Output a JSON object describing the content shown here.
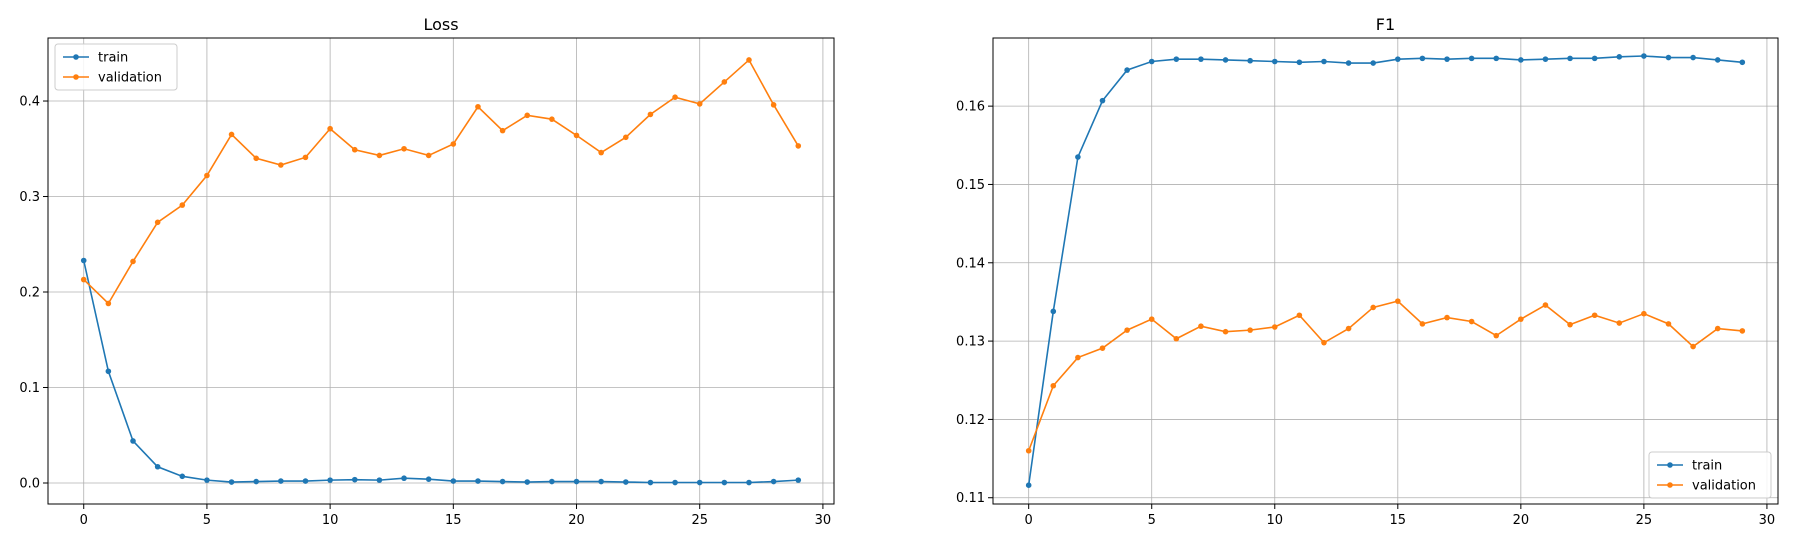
{
  "colors": {
    "train": "#1f77b4",
    "validation": "#ff7f0e",
    "grid": "#b0b0b0",
    "axis": "#000000"
  },
  "chart_data": [
    {
      "type": "line",
      "title": "Loss",
      "xlabel": "",
      "ylabel": "",
      "xlim": [
        -1.45,
        30.45
      ],
      "ylim": [
        -0.022,
        0.466
      ],
      "xticks": [
        0,
        5,
        10,
        15,
        20,
        25,
        30
      ],
      "yticks": [
        0.0,
        0.1,
        0.2,
        0.3,
        0.4
      ],
      "ytick_labels": [
        "0.0",
        "0.1",
        "0.2",
        "0.3",
        "0.4"
      ],
      "grid": true,
      "legend": "top-left",
      "x": [
        0,
        1,
        2,
        3,
        4,
        5,
        6,
        7,
        8,
        9,
        10,
        11,
        12,
        13,
        14,
        15,
        16,
        17,
        18,
        19,
        20,
        21,
        22,
        23,
        24,
        25,
        26,
        27,
        28,
        29
      ],
      "series": [
        {
          "name": "train",
          "values": [
            0.233,
            0.117,
            0.044,
            0.017,
            0.007,
            0.003,
            0.001,
            0.0015,
            0.002,
            0.002,
            0.003,
            0.0035,
            0.003,
            0.005,
            0.004,
            0.002,
            0.002,
            0.0015,
            0.001,
            0.0015,
            0.0015,
            0.0015,
            0.001,
            0.0005,
            0.0005,
            0.0005,
            0.0005,
            0.0005,
            0.0015,
            0.003
          ]
        },
        {
          "name": "validation",
          "values": [
            0.213,
            0.188,
            0.232,
            0.273,
            0.291,
            0.322,
            0.365,
            0.34,
            0.333,
            0.341,
            0.371,
            0.349,
            0.343,
            0.35,
            0.343,
            0.355,
            0.394,
            0.369,
            0.385,
            0.381,
            0.364,
            0.346,
            0.362,
            0.386,
            0.404,
            0.397,
            0.42,
            0.443,
            0.396,
            0.353
          ]
        }
      ]
    },
    {
      "type": "line",
      "title": "F1",
      "xlabel": "",
      "ylabel": "",
      "xlim": [
        -1.45,
        30.45
      ],
      "ylim": [
        0.1092,
        0.1687
      ],
      "xticks": [
        0,
        5,
        10,
        15,
        20,
        25,
        30
      ],
      "yticks": [
        0.11,
        0.12,
        0.13,
        0.14,
        0.15,
        0.16
      ],
      "ytick_labels": [
        "0.11",
        "0.12",
        "0.13",
        "0.14",
        "0.15",
        "0.16"
      ],
      "grid": true,
      "legend": "bottom-right",
      "x": [
        0,
        1,
        2,
        3,
        4,
        5,
        6,
        7,
        8,
        9,
        10,
        11,
        12,
        13,
        14,
        15,
        16,
        17,
        18,
        19,
        20,
        21,
        22,
        23,
        24,
        25,
        26,
        27,
        28,
        29
      ],
      "series": [
        {
          "name": "train",
          "values": [
            0.1116,
            0.1338,
            0.1535,
            0.1607,
            0.1646,
            0.1657,
            0.166,
            0.166,
            0.1659,
            0.1658,
            0.1657,
            0.1656,
            0.1657,
            0.1655,
            0.1655,
            0.166,
            0.1661,
            0.166,
            0.1661,
            0.1661,
            0.1659,
            0.166,
            0.1661,
            0.1661,
            0.1663,
            0.1664,
            0.1662,
            0.1662,
            0.1659,
            0.1656
          ]
        },
        {
          "name": "validation",
          "values": [
            0.116,
            0.1243,
            0.1279,
            0.1291,
            0.1314,
            0.1328,
            0.1303,
            0.1319,
            0.1312,
            0.1314,
            0.1318,
            0.1333,
            0.1298,
            0.1316,
            0.1343,
            0.1351,
            0.1322,
            0.133,
            0.1325,
            0.1307,
            0.1328,
            0.1346,
            0.1321,
            0.1333,
            0.1323,
            0.1335,
            0.1322,
            0.1293,
            0.1316,
            0.1313
          ]
        }
      ]
    }
  ]
}
